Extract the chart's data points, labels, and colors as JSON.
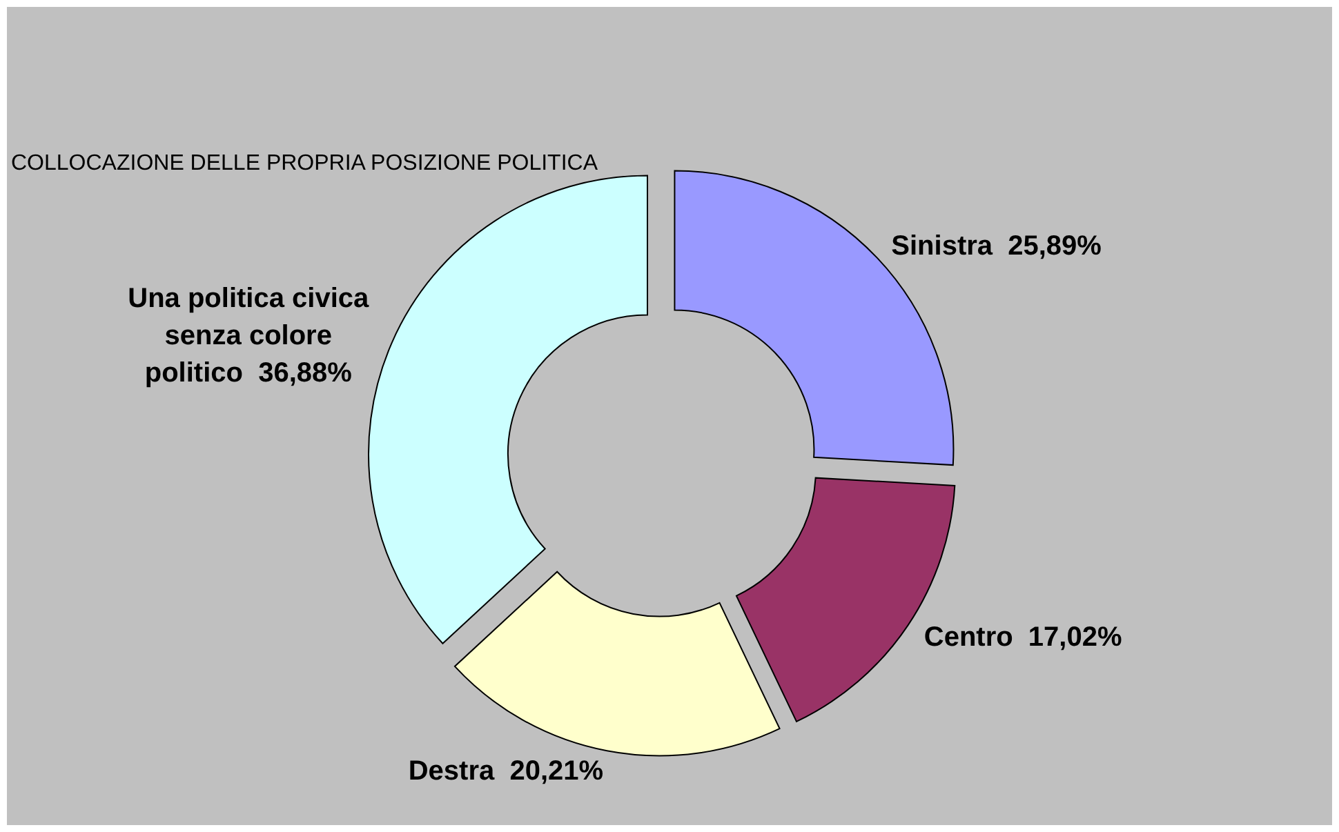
{
  "chart_data": {
    "type": "donut",
    "title": "COLLOCAZIONE DELLE PROPRIA POSIZIONE POLITICA",
    "categories": [
      "Sinistra",
      "Centro",
      "Destra",
      "Una politica civica senza colore politico"
    ],
    "values": [
      25.89,
      17.02,
      20.21,
      36.88
    ],
    "colors": [
      "#9999ff",
      "#993366",
      "#ffffcc",
      "#ccffff"
    ],
    "value_labels": [
      "25,89%",
      "17,02%",
      "20,21%",
      "36,88%"
    ]
  }
}
